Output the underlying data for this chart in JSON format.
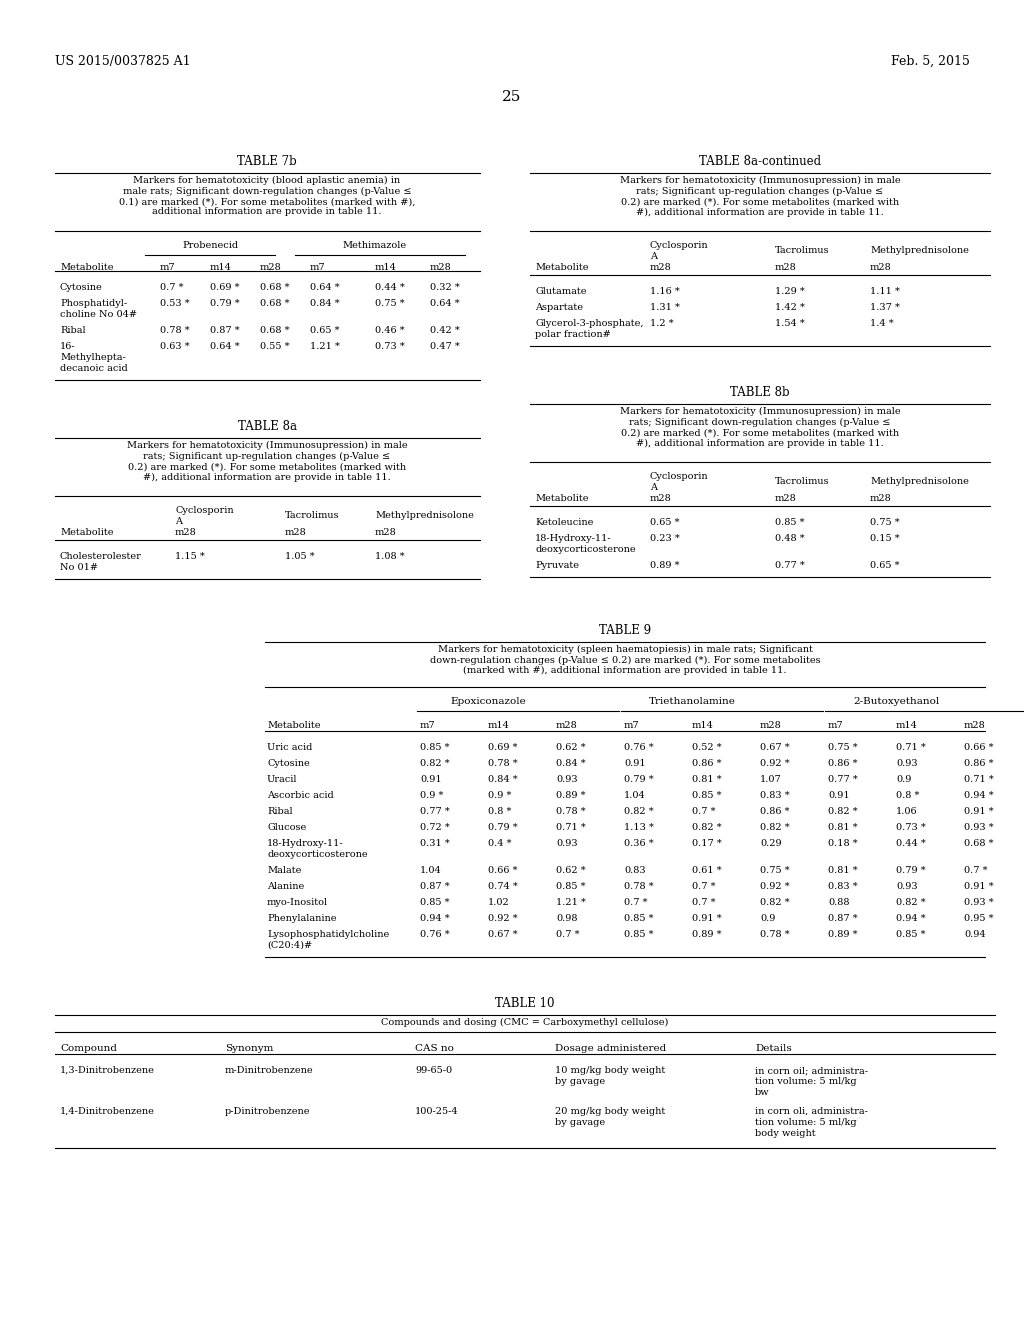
{
  "header_left": "US 2015/0037825 A1",
  "header_right": "Feb. 5, 2015",
  "page_number": "25",
  "background_color": "#ffffff",
  "text_color": "#000000",
  "tables": {
    "table7b": {
      "title": "TABLE 7b",
      "caption": "Markers for hematotoxicity (blood aplastic anemia) in\nmale rats; Significant down-regulation changes (p-Value ≤\n0.1) are marked (*). For some metabolites (marked with #),\nadditional information are provide in table 11.",
      "rows": [
        [
          "Cytosine",
          "0.7 *",
          "0.69 *",
          "0.68 *",
          "0.64 *",
          "0.44 *",
          "0.32 *"
        ],
        [
          "Phosphatidyl-\ncholine No 04#",
          "0.53 *",
          "0.79 *",
          "0.68 *",
          "0.84 *",
          "0.75 *",
          "0.64 *"
        ],
        [
          "Ribal",
          "0.78 *",
          "0.87 *",
          "0.68 *",
          "0.65 *",
          "0.46 *",
          "0.42 *"
        ],
        [
          "16-\nMethylhepta-\ndecanoic acid",
          "0.63 *",
          "0.64 *",
          "0.55 *",
          "1.21 *",
          "0.73 *",
          "0.47 *"
        ]
      ]
    },
    "table8a_cont": {
      "title": "TABLE 8a-continued",
      "caption": "Markers for hematotoxicity (Immunosupression) in male\nrats; Significant up-regulation changes (p-Value ≤\n0.2) are marked (*). For some metabolites (marked with\n#), additional information are provide in table 11.",
      "rows": [
        [
          "Glutamate",
          "1.16 *",
          "1.29 *",
          "1.11 *"
        ],
        [
          "Aspartate",
          "1.31 *",
          "1.42 *",
          "1.37 *"
        ],
        [
          "Glycerol-3-phosphate,\npolar fraction#",
          "1.2 *",
          "1.54 *",
          "1.4 *"
        ]
      ]
    },
    "table8a": {
      "title": "TABLE 8a",
      "caption": "Markers for hematotoxicity (Immunosupression) in male\nrats; Significant up-regulation changes (p-Value ≤\n0.2) are marked (*). For some metabolites (marked with\n#), additional information are provide in table 11.",
      "rows": [
        [
          "Cholesterolester\nNo 01#",
          "1.15 *",
          "1.05 *",
          "1.08 *"
        ]
      ]
    },
    "table8b": {
      "title": "TABLE 8b",
      "caption": "Markers for hematotoxicity (Immunosupression) in male\nrats; Significant down-regulation changes (p-Value ≤\n0.2) are marked (*). For some metabolites (marked with\n#), additional information are provide in table 11.",
      "rows": [
        [
          "Ketoleucine",
          "0.65 *",
          "0.85 *",
          "0.75 *"
        ],
        [
          "18-Hydroxy-11-\ndeoxycorticosterone",
          "0.23 *",
          "0.48 *",
          "0.15 *"
        ],
        [
          "Pyruvate",
          "0.89 *",
          "0.77 *",
          "0.65 *"
        ]
      ]
    },
    "table9": {
      "title": "TABLE 9",
      "caption": "Markers for hematotoxicity (spleen haematopiesis) in male rats; Significant\ndown-regulation changes (p-Value ≤ 0.2) are marked (*). For some metabolites\n(marked with #), additional information are provided in table 11.",
      "rows": [
        [
          "Uric acid",
          "0.85 *",
          "0.69 *",
          "0.62 *",
          "0.76 *",
          "0.52 *",
          "0.67 *",
          "0.75 *",
          "0.71 *",
          "0.66 *"
        ],
        [
          "Cytosine",
          "0.82 *",
          "0.78 *",
          "0.84 *",
          "0.91",
          "0.86 *",
          "0.92 *",
          "0.86 *",
          "0.93",
          "0.86 *"
        ],
        [
          "Uracil",
          "0.91",
          "0.84 *",
          "0.93",
          "0.79 *",
          "0.81 *",
          "1.07",
          "0.77 *",
          "0.9",
          "0.71 *"
        ],
        [
          "Ascorbic acid",
          "0.9 *",
          "0.9 *",
          "0.89 *",
          "1.04",
          "0.85 *",
          "0.83 *",
          "0.91",
          "0.8 *",
          "0.94 *"
        ],
        [
          "Ribal",
          "0.77 *",
          "0.8 *",
          "0.78 *",
          "0.82 *",
          "0.7 *",
          "0.86 *",
          "0.82 *",
          "1.06",
          "0.91 *"
        ],
        [
          "Glucose",
          "0.72 *",
          "0.79 *",
          "0.71 *",
          "1.13 *",
          "0.82 *",
          "0.82 *",
          "0.81 *",
          "0.73 *",
          "0.93 *"
        ],
        [
          "18-Hydroxy-11-\ndeoxycorticosterone",
          "0.31 *",
          "0.4 *",
          "0.93",
          "0.36 *",
          "0.17 *",
          "0.29",
          "0.18 *",
          "0.44 *",
          "0.68 *"
        ],
        [
          "Malate",
          "1.04",
          "0.66 *",
          "0.62 *",
          "0.83",
          "0.61 *",
          "0.75 *",
          "0.81 *",
          "0.79 *",
          "0.7 *"
        ],
        [
          "Alanine",
          "0.87 *",
          "0.74 *",
          "0.85 *",
          "0.78 *",
          "0.7 *",
          "0.92 *",
          "0.83 *",
          "0.93",
          "0.91 *"
        ],
        [
          "myo-Inositol",
          "0.85 *",
          "1.02",
          "1.21 *",
          "0.7 *",
          "0.7 *",
          "0.82 *",
          "0.88",
          "0.82 *",
          "0.93 *"
        ],
        [
          "Phenylalanine",
          "0.94 *",
          "0.92 *",
          "0.98",
          "0.85 *",
          "0.91 *",
          "0.9",
          "0.87 *",
          "0.94 *",
          "0.95 *"
        ],
        [
          "Lysophosphatidylcholine\n(C20:4)#",
          "0.76 *",
          "0.67 *",
          "0.7 *",
          "0.85 *",
          "0.89 *",
          "0.78 *",
          "0.89 *",
          "0.85 *",
          "0.94"
        ]
      ]
    },
    "table10": {
      "title": "TABLE 10",
      "caption": "Compounds and dosing (CMC = Carboxymethyl cellulose)",
      "headers": [
        "Compound",
        "Synonym",
        "CAS no",
        "Dosage administered",
        "Details"
      ],
      "rows": [
        [
          "1,3-Dinitrobenzene",
          "m-Dinitrobenzene",
          "99-65-0",
          "10 mg/kg body weight\nby gavage",
          "in corn oil; administra-\ntion volume: 5 ml/kg\nbw"
        ],
        [
          "1,4-Dinitrobenzene",
          "p-Dinitrobenzene",
          "100-25-4",
          "20 mg/kg body weight\nby gavage",
          "in corn oli, administra-\ntion volume: 5 ml/kg\nbody weight"
        ]
      ]
    }
  }
}
